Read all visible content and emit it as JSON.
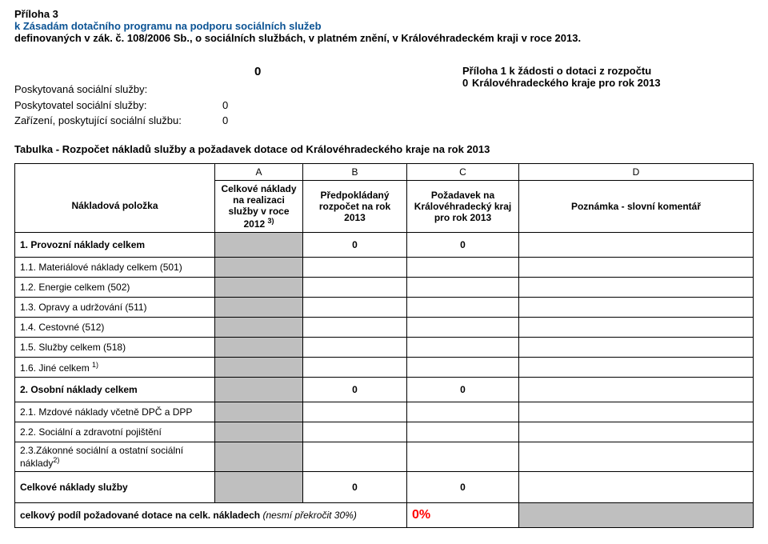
{
  "header": {
    "line1": "Příloha 3",
    "line2": "k Zásadám dotačního programu na podporu sociálních služeb",
    "line3": "definovaných v zák. č. 108/2006 Sb., o sociálních službách, v platném znění, v Královéhradeckém kraji v roce 2013."
  },
  "meta": {
    "big_zero": "0",
    "left": [
      {
        "label": "Poskytovaná sociální služby:",
        "value": ""
      },
      {
        "label": "Poskytovatel sociální služby:",
        "value": "0"
      },
      {
        "label": "Zařízení, poskytující sociální službu:",
        "value": "0"
      }
    ],
    "right": {
      "r1": "Příloha 1  k žádosti o dotaci z rozpočtu",
      "r2_zero": "0",
      "r2_text": "Královéhradeckého kraje pro rok 2013"
    }
  },
  "table_title": "Tabulka - Rozpočet nákladů služby  a požadavek dotace od Královéhradeckého kraje na rok 2013",
  "cols": {
    "A": "A",
    "B": "B",
    "C": "C",
    "D": "D"
  },
  "col_heads": {
    "first": "Nákladová položka",
    "A": "Celkové náklady na realizaci služby v roce 2012 ",
    "A_sup": "3)",
    "B": "Předpokládaný rozpočet na rok 2013",
    "C": "Požadavek na Královéhradecký kraj pro rok 2013",
    "D": "Poznámka - slovní komentář"
  },
  "rows": {
    "s1": {
      "label": "1. Provozní náklady celkem",
      "B": "0",
      "C": "0"
    },
    "r11": {
      "label": "1.1. Materiálové náklady celkem (501)"
    },
    "r12": {
      "label": "1.2. Energie celkem (502)"
    },
    "r13": {
      "label": "1.3. Opravy a udržování (511)"
    },
    "r14": {
      "label": "1.4. Cestovné (512)"
    },
    "r15": {
      "label": "1.5. Služby celkem (518)"
    },
    "r16": {
      "label": "1.6. Jiné celkem ",
      "sup": "1)"
    },
    "s2": {
      "label": "2. Osobní náklady celkem",
      "B": "0",
      "C": "0"
    },
    "r21": {
      "label": "2.1. Mzdové náklady včetně DPČ a DPP"
    },
    "r22": {
      "label": "2.2. Sociální a zdravotní pojištění"
    },
    "r23": {
      "label": "2.3.Zákonné sociální  a ostatní sociální náklady",
      "sup": "2)"
    },
    "tot": {
      "label": "Celkové náklady služby",
      "B": "0",
      "C": "0"
    },
    "pct": {
      "label": "celkový podíl požadované dotace na celk. nákladech ",
      "ital": "(nesmí překročit 30%)",
      "val": "0%"
    }
  },
  "style": {
    "grey": "#bfbfbf",
    "red": "#ff0000",
    "blue": "#0b5394"
  }
}
